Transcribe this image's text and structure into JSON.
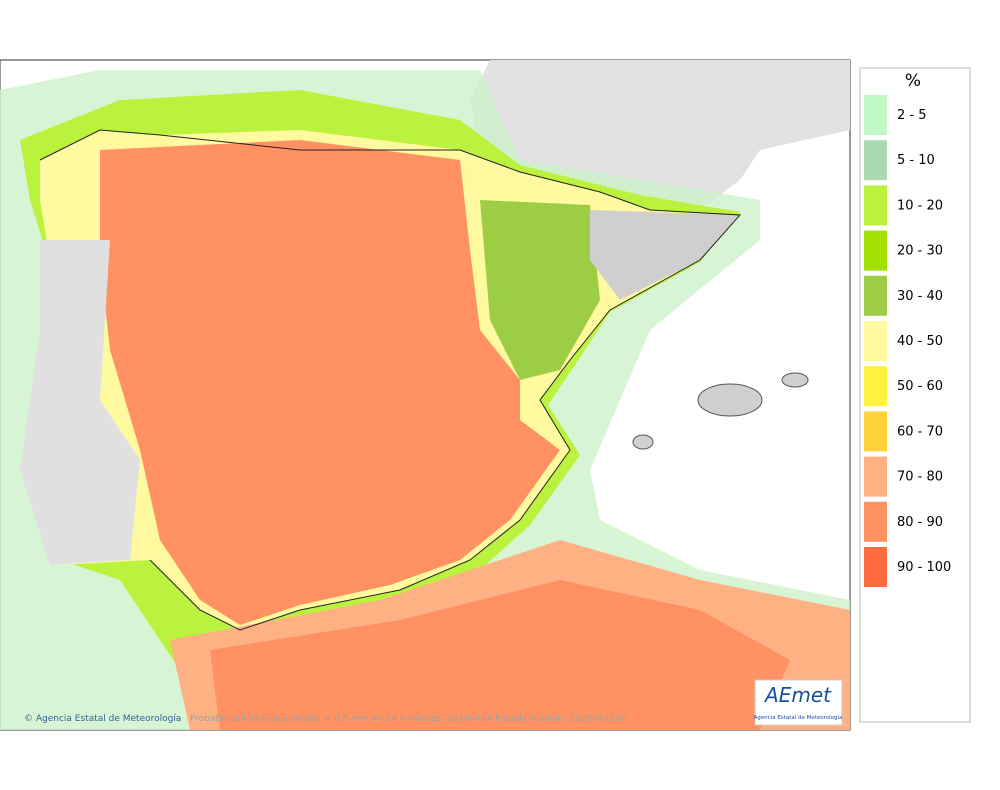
{
  "legend": {
    "title": "%",
    "items": [
      {
        "label": "2 - 5",
        "color": "#c2f7c6"
      },
      {
        "label": "5 - 10",
        "color": "#a9dbb0"
      },
      {
        "label": "10 - 20",
        "color": "#baf23e"
      },
      {
        "label": "20 - 30",
        "color": "#a2e004"
      },
      {
        "label": "30 - 40",
        "color": "#9ccd44"
      },
      {
        "label": "40 - 50",
        "color": "#fff9a0"
      },
      {
        "label": "50 - 60",
        "color": "#fff23e"
      },
      {
        "label": "60 - 70",
        "color": "#ffd23c"
      },
      {
        "label": "70 - 80",
        "color": "#ffb184"
      },
      {
        "label": "80 - 90",
        "color": "#ff9162"
      },
      {
        "label": "90 - 100",
        "color": "#ff6a3e"
      }
    ]
  },
  "footer": {
    "credit": "© Agencia Estatal de Meteorología",
    "caption": "Probabilidad de precipitación > 0.5 mm en 24 h Validez: 20260424 Pasada modelo: 2026042200"
  },
  "logo": {
    "name": "AEmet",
    "subtitle": "Agencia Estatal de Meteorología"
  }
}
